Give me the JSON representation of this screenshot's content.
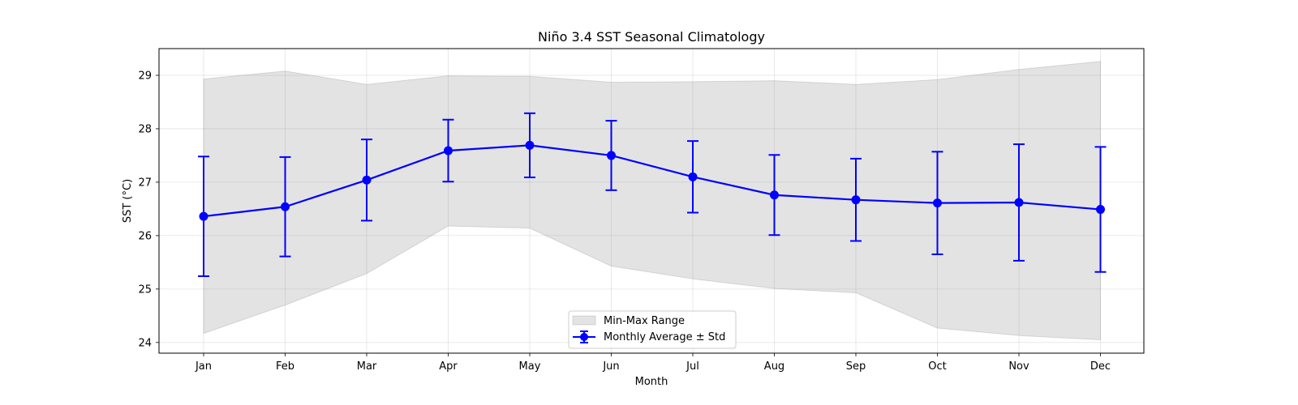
{
  "chart_data": {
    "type": "line",
    "title": "Niño 3.4 SST Seasonal Climatology",
    "xlabel": "Month",
    "ylabel": "SST (°C)",
    "categories": [
      "Jan",
      "Feb",
      "Mar",
      "Apr",
      "May",
      "Jun",
      "Jul",
      "Aug",
      "Sep",
      "Oct",
      "Nov",
      "Dec"
    ],
    "ylim": [
      23.8,
      29.5
    ],
    "yticks": [
      24,
      25,
      26,
      27,
      28,
      29
    ],
    "grid": true,
    "legend_position": "bottom-center",
    "series": [
      {
        "name": "Monthly Average ± Std",
        "values": [
          26.36,
          26.54,
          27.04,
          27.59,
          27.69,
          27.5,
          27.1,
          26.76,
          26.67,
          26.61,
          26.62,
          26.49
        ],
        "std": [
          1.12,
          0.93,
          0.76,
          0.58,
          0.6,
          0.65,
          0.67,
          0.75,
          0.77,
          0.96,
          1.09,
          1.17
        ],
        "color": "#0000ff"
      },
      {
        "name": "Min-Max Range",
        "min": [
          24.17,
          24.7,
          25.29,
          26.18,
          26.14,
          25.43,
          25.19,
          25.01,
          24.93,
          24.27,
          24.13,
          24.05
        ],
        "max": [
          28.93,
          29.08,
          28.83,
          28.99,
          28.98,
          28.87,
          28.88,
          28.9,
          28.83,
          28.92,
          29.11,
          29.26
        ],
        "color": "#bfbfbf"
      }
    ]
  }
}
